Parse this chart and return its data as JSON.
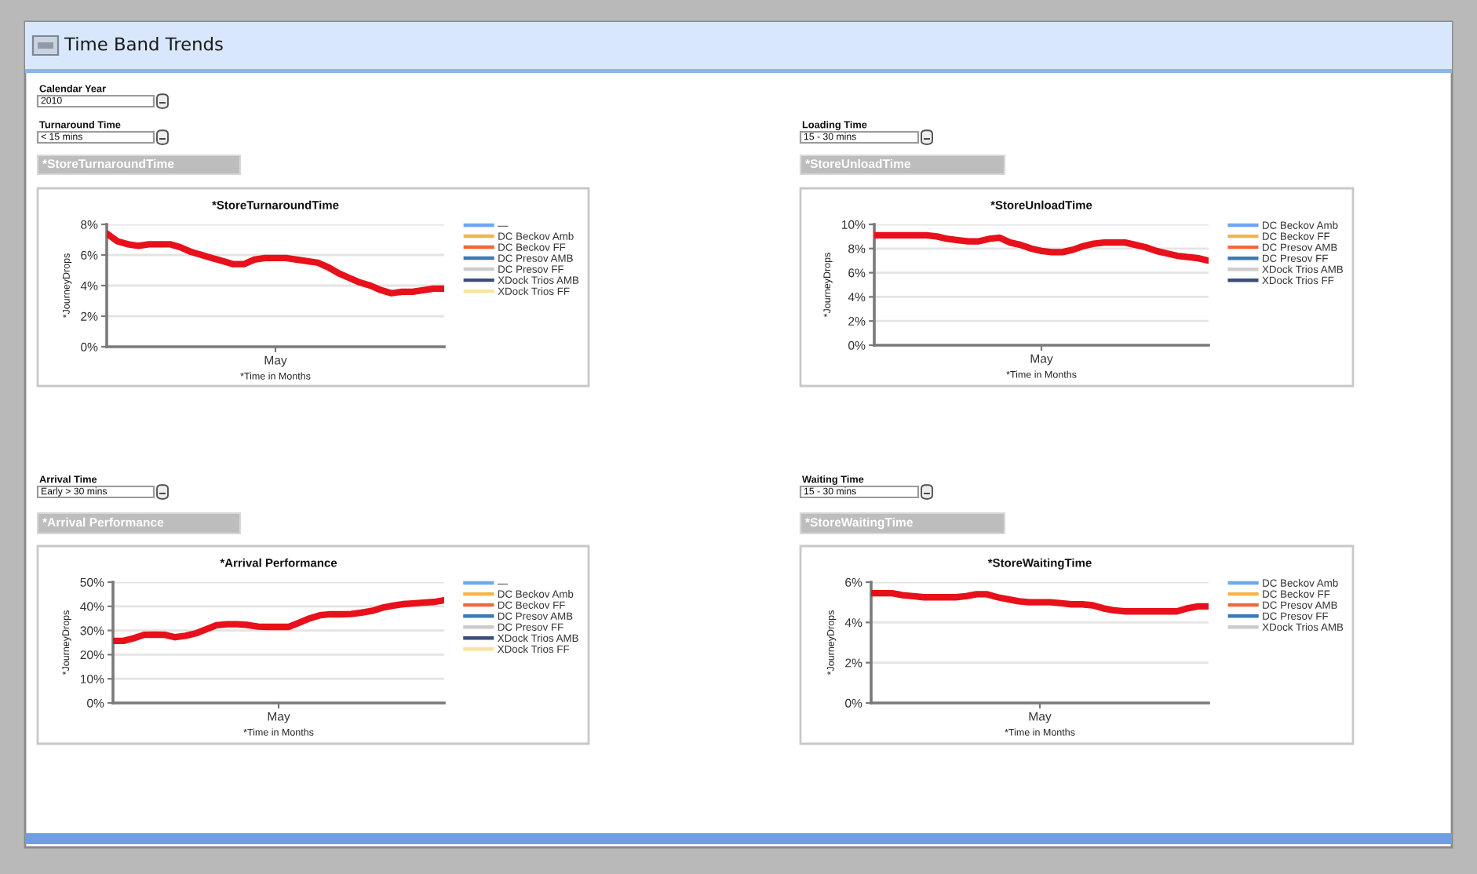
{
  "chart_data": [
    {
      "type": "other",
      "title": "Time Band Trends",
      "annotations": [
        "Calendar Year",
        "2010"
      ]
    },
    {
      "type": "line",
      "title": "*StoreTurnaroundTime",
      "xlabel": "*Time in Months",
      "ylabel": "*JourneyDrops",
      "annotations": [
        "Turnaround Time",
        "< 15 mins",
        "*StoreTurnaroundTime"
      ],
      "categories": [
        null,
        null,
        null,
        null,
        null,
        null,
        null,
        null,
        null,
        null,
        null,
        null,
        null,
        null,
        null,
        null,
        "May",
        null,
        null,
        null,
        null,
        null,
        null,
        null,
        null,
        null,
        null,
        null,
        null,
        null,
        null,
        null,
        null
      ],
      "series": [
        {
          "name": "—",
          "color": "#6fa8f0",
          "values": [
            null,
            null,
            null,
            null,
            null,
            null,
            null,
            null,
            null,
            null,
            null,
            null,
            null,
            null,
            null,
            null,
            null,
            null,
            null,
            null,
            null,
            null,
            null,
            null,
            null,
            null,
            null,
            null,
            null,
            null,
            null,
            null,
            null
          ]
        },
        {
          "name": "DC Beckov Amb",
          "color": "#f7b34a",
          "values": [
            null,
            null,
            null,
            null,
            null,
            null,
            null,
            null,
            null,
            null,
            null,
            null,
            null,
            null,
            null,
            null,
            null,
            null,
            null,
            null,
            null,
            null,
            null,
            null,
            null,
            null,
            null,
            null,
            null,
            null,
            null,
            null,
            null
          ]
        },
        {
          "name": "DC Beckov FF",
          "color": "#f2663a",
          "values": [
            null,
            null,
            null,
            null,
            null,
            null,
            null,
            null,
            null,
            null,
            null,
            null,
            null,
            null,
            null,
            null,
            null,
            null,
            null,
            null,
            null,
            null,
            null,
            null,
            null,
            null,
            null,
            null,
            null,
            null,
            null,
            null,
            null
          ]
        },
        {
          "name": "DC Presov AMB",
          "color": "#3a7ab8",
          "values": [
            null,
            null,
            null,
            null,
            null,
            null,
            null,
            null,
            null,
            null,
            null,
            null,
            null,
            null,
            null,
            null,
            null,
            null,
            null,
            null,
            null,
            null,
            null,
            null,
            null,
            null,
            null,
            null,
            null,
            null,
            null,
            null,
            null
          ]
        },
        {
          "name": "DC Presov FF",
          "color": "#cccccc",
          "values": [
            null,
            null,
            null,
            null,
            null,
            null,
            null,
            null,
            null,
            null,
            null,
            null,
            null,
            null,
            null,
            null,
            null,
            null,
            null,
            null,
            null,
            null,
            null,
            null,
            null,
            null,
            null,
            null,
            null,
            null,
            null,
            null,
            null
          ]
        },
        {
          "name": "XDock Trios AMB",
          "color": "#3b4d7a",
          "values": [
            null,
            null,
            null,
            null,
            null,
            null,
            null,
            null,
            null,
            null,
            null,
            null,
            null,
            null,
            null,
            null,
            null,
            null,
            null,
            null,
            null,
            null,
            null,
            null,
            null,
            null,
            null,
            null,
            null,
            null,
            null,
            null,
            null
          ]
        },
        {
          "name": "XDock Trios FF",
          "color": "#fbe39a",
          "values": [
            null,
            null,
            null,
            null,
            null,
            null,
            null,
            null,
            null,
            null,
            null,
            null,
            null,
            null,
            null,
            null,
            null,
            null,
            null,
            null,
            null,
            null,
            null,
            null,
            null,
            null,
            null,
            null,
            null,
            null,
            null,
            null,
            null
          ]
        },
        {
          "color": "#e8101a",
          "values": [
            7.4,
            6.9,
            6.7,
            6.6,
            6.7,
            6.7,
            6.7,
            6.5,
            6.2,
            6.0,
            5.8,
            5.6,
            5.4,
            5.4,
            5.7,
            5.8,
            5.8,
            5.8,
            5.7,
            5.6,
            5.5,
            5.2,
            4.8,
            4.5,
            4.2,
            4.0,
            3.7,
            3.5,
            3.6,
            3.6,
            3.7,
            3.8,
            3.8
          ]
        }
      ],
      "ylim": [
        0,
        8
      ],
      "yticks": [
        {
          "value": 0,
          "label": "0%"
        },
        {
          "value": 2,
          "label": "2%"
        },
        {
          "value": 4,
          "label": "4%"
        },
        {
          "value": 6,
          "label": "6%"
        },
        {
          "value": 8,
          "label": "8%"
        }
      ],
      "grid": "y",
      "legend": "right",
      "line_style": "solid"
    },
    {
      "type": "line",
      "title": "*StoreUnloadTime",
      "xlabel": "*Time in Months",
      "ylabel": "*JourneyDrops",
      "annotations": [
        "Loading Time",
        "15 - 30 mins",
        "*StoreUnloadTime"
      ],
      "categories": [
        null,
        null,
        null,
        null,
        null,
        null,
        null,
        null,
        null,
        null,
        null,
        null,
        null,
        null,
        null,
        null,
        "May",
        null,
        null,
        null,
        null,
        null,
        null,
        null,
        null,
        null,
        null,
        null,
        null,
        null,
        null,
        null,
        null
      ],
      "series": [
        {
          "name": "DC Beckov Amb",
          "color": "#6fa8f0",
          "values": [
            null,
            null,
            null,
            null,
            null,
            null,
            null,
            null,
            null,
            null,
            null,
            null,
            null,
            null,
            null,
            null,
            null,
            null,
            null,
            null,
            null,
            null,
            null,
            null,
            null,
            null,
            null,
            null,
            null,
            null,
            null,
            null,
            null
          ]
        },
        {
          "name": "DC Beckov FF",
          "color": "#f7b34a",
          "values": [
            null,
            null,
            null,
            null,
            null,
            null,
            null,
            null,
            null,
            null,
            null,
            null,
            null,
            null,
            null,
            null,
            null,
            null,
            null,
            null,
            null,
            null,
            null,
            null,
            null,
            null,
            null,
            null,
            null,
            null,
            null,
            null,
            null
          ]
        },
        {
          "name": "DC Presov AMB",
          "color": "#f2663a",
          "values": [
            null,
            null,
            null,
            null,
            null,
            null,
            null,
            null,
            null,
            null,
            null,
            null,
            null,
            null,
            null,
            null,
            null,
            null,
            null,
            null,
            null,
            null,
            null,
            null,
            null,
            null,
            null,
            null,
            null,
            null,
            null,
            null,
            null
          ]
        },
        {
          "name": "DC Presov FF",
          "color": "#3a7ab8",
          "values": [
            null,
            null,
            null,
            null,
            null,
            null,
            null,
            null,
            null,
            null,
            null,
            null,
            null,
            null,
            null,
            null,
            null,
            null,
            null,
            null,
            null,
            null,
            null,
            null,
            null,
            null,
            null,
            null,
            null,
            null,
            null,
            null,
            null
          ]
        },
        {
          "name": "XDock Trios AMB",
          "color": "#cccccc",
          "values": [
            null,
            null,
            null,
            null,
            null,
            null,
            null,
            null,
            null,
            null,
            null,
            null,
            null,
            null,
            null,
            null,
            null,
            null,
            null,
            null,
            null,
            null,
            null,
            null,
            null,
            null,
            null,
            null,
            null,
            null,
            null,
            null,
            null
          ]
        },
        {
          "name": "XDock Trios FF",
          "color": "#3b4d7a",
          "values": [
            null,
            null,
            null,
            null,
            null,
            null,
            null,
            null,
            null,
            null,
            null,
            null,
            null,
            null,
            null,
            null,
            null,
            null,
            null,
            null,
            null,
            null,
            null,
            null,
            null,
            null,
            null,
            null,
            null,
            null,
            null,
            null,
            null
          ]
        },
        {
          "color": "#e8101a",
          "values": [
            9.1,
            9.1,
            9.1,
            9.1,
            9.1,
            9.1,
            9.0,
            8.8,
            8.7,
            8.6,
            8.6,
            8.8,
            8.9,
            8.5,
            8.3,
            8.0,
            7.8,
            7.7,
            7.7,
            7.9,
            8.2,
            8.4,
            8.5,
            8.5,
            8.5,
            8.3,
            8.1,
            7.8,
            7.6,
            7.4,
            7.3,
            7.2,
            7.0
          ]
        }
      ],
      "ylim": [
        0,
        10
      ],
      "yticks": [
        {
          "value": 0,
          "label": "0%"
        },
        {
          "value": 2,
          "label": "2%"
        },
        {
          "value": 4,
          "label": "4%"
        },
        {
          "value": 6,
          "label": "6%"
        },
        {
          "value": 8,
          "label": "8%"
        },
        {
          "value": 10,
          "label": "10%"
        }
      ],
      "grid": "y",
      "legend": "right",
      "line_style": "solid"
    },
    {
      "type": "line",
      "title": "*Arrival Performance",
      "xlabel": "*Time in Months",
      "ylabel": "*JourneyDrops",
      "annotations": [
        "Arrival Time",
        "Early > 30 mins",
        "*Arrival Performance"
      ],
      "categories": [
        null,
        null,
        null,
        null,
        null,
        null,
        null,
        null,
        null,
        null,
        null,
        null,
        null,
        null,
        null,
        null,
        "May",
        null,
        null,
        null,
        null,
        null,
        null,
        null,
        null,
        null,
        null,
        null,
        null,
        null,
        null,
        null,
        null
      ],
      "series": [
        {
          "name": "—",
          "color": "#6fa8f0",
          "values": [
            null,
            null,
            null,
            null,
            null,
            null,
            null,
            null,
            null,
            null,
            null,
            null,
            null,
            null,
            null,
            null,
            null,
            null,
            null,
            null,
            null,
            null,
            null,
            null,
            null,
            null,
            null,
            null,
            null,
            null,
            null,
            null,
            null
          ]
        },
        {
          "name": "DC Beckov Amb",
          "color": "#f7b34a",
          "values": [
            null,
            null,
            null,
            null,
            null,
            null,
            null,
            null,
            null,
            null,
            null,
            null,
            null,
            null,
            null,
            null,
            null,
            null,
            null,
            null,
            null,
            null,
            null,
            null,
            null,
            null,
            null,
            null,
            null,
            null,
            null,
            null,
            null
          ]
        },
        {
          "name": "DC Beckov FF",
          "color": "#f2663a",
          "values": [
            null,
            null,
            null,
            null,
            null,
            null,
            null,
            null,
            null,
            null,
            null,
            null,
            null,
            null,
            null,
            null,
            null,
            null,
            null,
            null,
            null,
            null,
            null,
            null,
            null,
            null,
            null,
            null,
            null,
            null,
            null,
            null,
            null
          ]
        },
        {
          "name": "DC Presov AMB",
          "color": "#3a7ab8",
          "values": [
            null,
            null,
            null,
            null,
            null,
            null,
            null,
            null,
            null,
            null,
            null,
            null,
            null,
            null,
            null,
            null,
            null,
            null,
            null,
            null,
            null,
            null,
            null,
            null,
            null,
            null,
            null,
            null,
            null,
            null,
            null,
            null,
            null
          ]
        },
        {
          "name": "DC Presov FF",
          "color": "#cccccc",
          "values": [
            null,
            null,
            null,
            null,
            null,
            null,
            null,
            null,
            null,
            null,
            null,
            null,
            null,
            null,
            null,
            null,
            null,
            null,
            null,
            null,
            null,
            null,
            null,
            null,
            null,
            null,
            null,
            null,
            null,
            null,
            null,
            null,
            null
          ]
        },
        {
          "name": "XDock Trios AMB",
          "color": "#3b4d7a",
          "values": [
            null,
            null,
            null,
            null,
            null,
            null,
            null,
            null,
            null,
            null,
            null,
            null,
            null,
            null,
            null,
            null,
            null,
            null,
            null,
            null,
            null,
            null,
            null,
            null,
            null,
            null,
            null,
            null,
            null,
            null,
            null,
            null,
            null
          ]
        },
        {
          "name": "XDock Trios FF",
          "color": "#fbe39a",
          "values": [
            null,
            null,
            null,
            null,
            null,
            null,
            null,
            null,
            null,
            null,
            null,
            null,
            null,
            null,
            null,
            null,
            null,
            null,
            null,
            null,
            null,
            null,
            null,
            null,
            null,
            null,
            null,
            null,
            null,
            null,
            null,
            null,
            null
          ]
        },
        {
          "color": "#e8101a",
          "values": [
            25.7,
            25.7,
            26.8,
            28.2,
            28.3,
            28.2,
            27.2,
            27.8,
            28.8,
            30.5,
            32.2,
            32.6,
            32.6,
            32.3,
            31.6,
            31.5,
            31.5,
            31.5,
            33.2,
            35.0,
            36.3,
            36.7,
            36.7,
            36.8,
            37.4,
            38.1,
            39.4,
            40.2,
            40.9,
            41.2,
            41.5,
            41.8,
            42.5
          ]
        }
      ],
      "ylim": [
        0,
        50
      ],
      "yticks": [
        {
          "value": 0,
          "label": "0%"
        },
        {
          "value": 10,
          "label": "10%"
        },
        {
          "value": 20,
          "label": "20%"
        },
        {
          "value": 30,
          "label": "30%"
        },
        {
          "value": 40,
          "label": "40%"
        },
        {
          "value": 50,
          "label": "50%"
        }
      ],
      "grid": "y",
      "legend": "right",
      "line_style": "solid"
    },
    {
      "type": "line",
      "title": "*StoreWaitingTime",
      "xlabel": "*Time in Months",
      "ylabel": "*JourneyDrops",
      "annotations": [
        "Waiting Time",
        "15 - 30 mins",
        "*StoreWaitingTime"
      ],
      "categories": [
        null,
        null,
        null,
        null,
        null,
        null,
        null,
        null,
        null,
        null,
        null,
        null,
        null,
        null,
        null,
        null,
        "May",
        null,
        null,
        null,
        null,
        null,
        null,
        null,
        null,
        null,
        null,
        null,
        null,
        null,
        null,
        null,
        null
      ],
      "series": [
        {
          "name": "DC Beckov Amb",
          "color": "#6fa8f0",
          "values": [
            null,
            null,
            null,
            null,
            null,
            null,
            null,
            null,
            null,
            null,
            null,
            null,
            null,
            null,
            null,
            null,
            null,
            null,
            null,
            null,
            null,
            null,
            null,
            null,
            null,
            null,
            null,
            null,
            null,
            null,
            null,
            null,
            null
          ]
        },
        {
          "name": "DC Beckov FF",
          "color": "#f7b34a",
          "values": [
            null,
            null,
            null,
            null,
            null,
            null,
            null,
            null,
            null,
            null,
            null,
            null,
            null,
            null,
            null,
            null,
            null,
            null,
            null,
            null,
            null,
            null,
            null,
            null,
            null,
            null,
            null,
            null,
            null,
            null,
            null,
            null,
            null
          ]
        },
        {
          "name": "DC Presov AMB",
          "color": "#f2663a",
          "values": [
            null,
            null,
            null,
            null,
            null,
            null,
            null,
            null,
            null,
            null,
            null,
            null,
            null,
            null,
            null,
            null,
            null,
            null,
            null,
            null,
            null,
            null,
            null,
            null,
            null,
            null,
            null,
            null,
            null,
            null,
            null,
            null,
            null
          ]
        },
        {
          "name": "DC Presov FF",
          "color": "#3a7ab8",
          "values": [
            null,
            null,
            null,
            null,
            null,
            null,
            null,
            null,
            null,
            null,
            null,
            null,
            null,
            null,
            null,
            null,
            null,
            null,
            null,
            null,
            null,
            null,
            null,
            null,
            null,
            null,
            null,
            null,
            null,
            null,
            null,
            null,
            null
          ]
        },
        {
          "name": "XDock Trios AMB",
          "color": "#cccccc",
          "values": [
            null,
            null,
            null,
            null,
            null,
            null,
            null,
            null,
            null,
            null,
            null,
            null,
            null,
            null,
            null,
            null,
            null,
            null,
            null,
            null,
            null,
            null,
            null,
            null,
            null,
            null,
            null,
            null,
            null,
            null,
            null,
            null,
            null
          ]
        },
        {
          "color": "#e8101a",
          "values": [
            5.45,
            5.45,
            5.45,
            5.35,
            5.3,
            5.25,
            5.25,
            5.25,
            5.25,
            5.3,
            5.4,
            5.4,
            5.25,
            5.15,
            5.05,
            5.0,
            5.0,
            5.0,
            4.95,
            4.9,
            4.9,
            4.85,
            4.7,
            4.6,
            4.55,
            4.55,
            4.55,
            4.55,
            4.55,
            4.55,
            4.7,
            4.8,
            4.8
          ]
        }
      ],
      "ylim": [
        0,
        6
      ],
      "yticks": [
        {
          "value": 0,
          "label": "0%"
        },
        {
          "value": 2,
          "label": "2%"
        },
        {
          "value": 4,
          "label": "4%"
        },
        {
          "value": 6,
          "label": "6%"
        }
      ],
      "grid": "y",
      "legend": "right",
      "line_style": "solid"
    }
  ]
}
